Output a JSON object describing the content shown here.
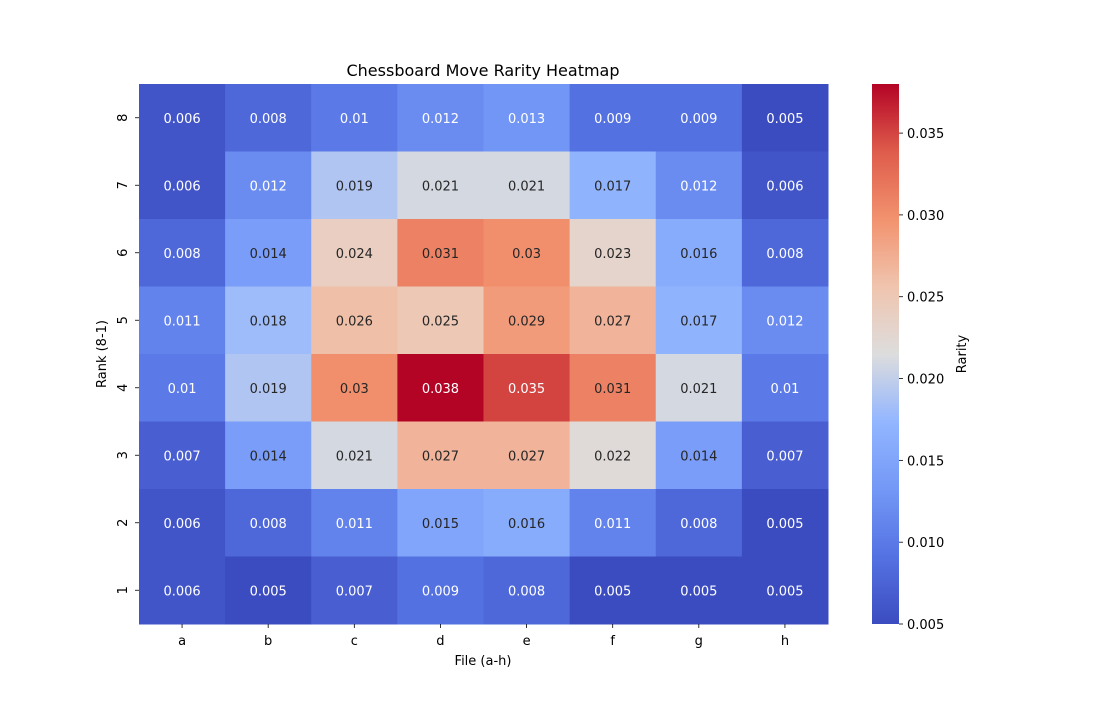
{
  "chart_data": {
    "type": "heatmap",
    "title": "Chessboard Move Rarity Heatmap",
    "xlabel": "File (a-h)",
    "ylabel": "Rank (8-1)",
    "x_categories": [
      "a",
      "b",
      "c",
      "d",
      "e",
      "f",
      "g",
      "h"
    ],
    "y_categories": [
      "8",
      "7",
      "6",
      "5",
      "4",
      "3",
      "2",
      "1"
    ],
    "values": [
      [
        0.006,
        0.008,
        0.01,
        0.012,
        0.013,
        0.009,
        0.009,
        0.005
      ],
      [
        0.006,
        0.012,
        0.019,
        0.021,
        0.021,
        0.017,
        0.012,
        0.006
      ],
      [
        0.008,
        0.014,
        0.024,
        0.031,
        0.03,
        0.023,
        0.016,
        0.008
      ],
      [
        0.011,
        0.018,
        0.026,
        0.025,
        0.029,
        0.027,
        0.017,
        0.012
      ],
      [
        0.01,
        0.019,
        0.03,
        0.038,
        0.035,
        0.031,
        0.021,
        0.01
      ],
      [
        0.007,
        0.014,
        0.021,
        0.027,
        0.027,
        0.022,
        0.014,
        0.007
      ],
      [
        0.006,
        0.008,
        0.011,
        0.015,
        0.016,
        0.011,
        0.008,
        0.005
      ],
      [
        0.006,
        0.005,
        0.007,
        0.009,
        0.008,
        0.005,
        0.005,
        0.005
      ]
    ],
    "colorbar": {
      "label": "Rarity",
      "min": 0.005,
      "max": 0.038,
      "ticks": [
        0.005,
        0.01,
        0.015,
        0.02,
        0.025,
        0.03,
        0.035
      ],
      "tick_labels": [
        "0.005",
        "0.010",
        "0.015",
        "0.020",
        "0.025",
        "0.030",
        "0.035"
      ],
      "colormap": "coolwarm"
    }
  }
}
